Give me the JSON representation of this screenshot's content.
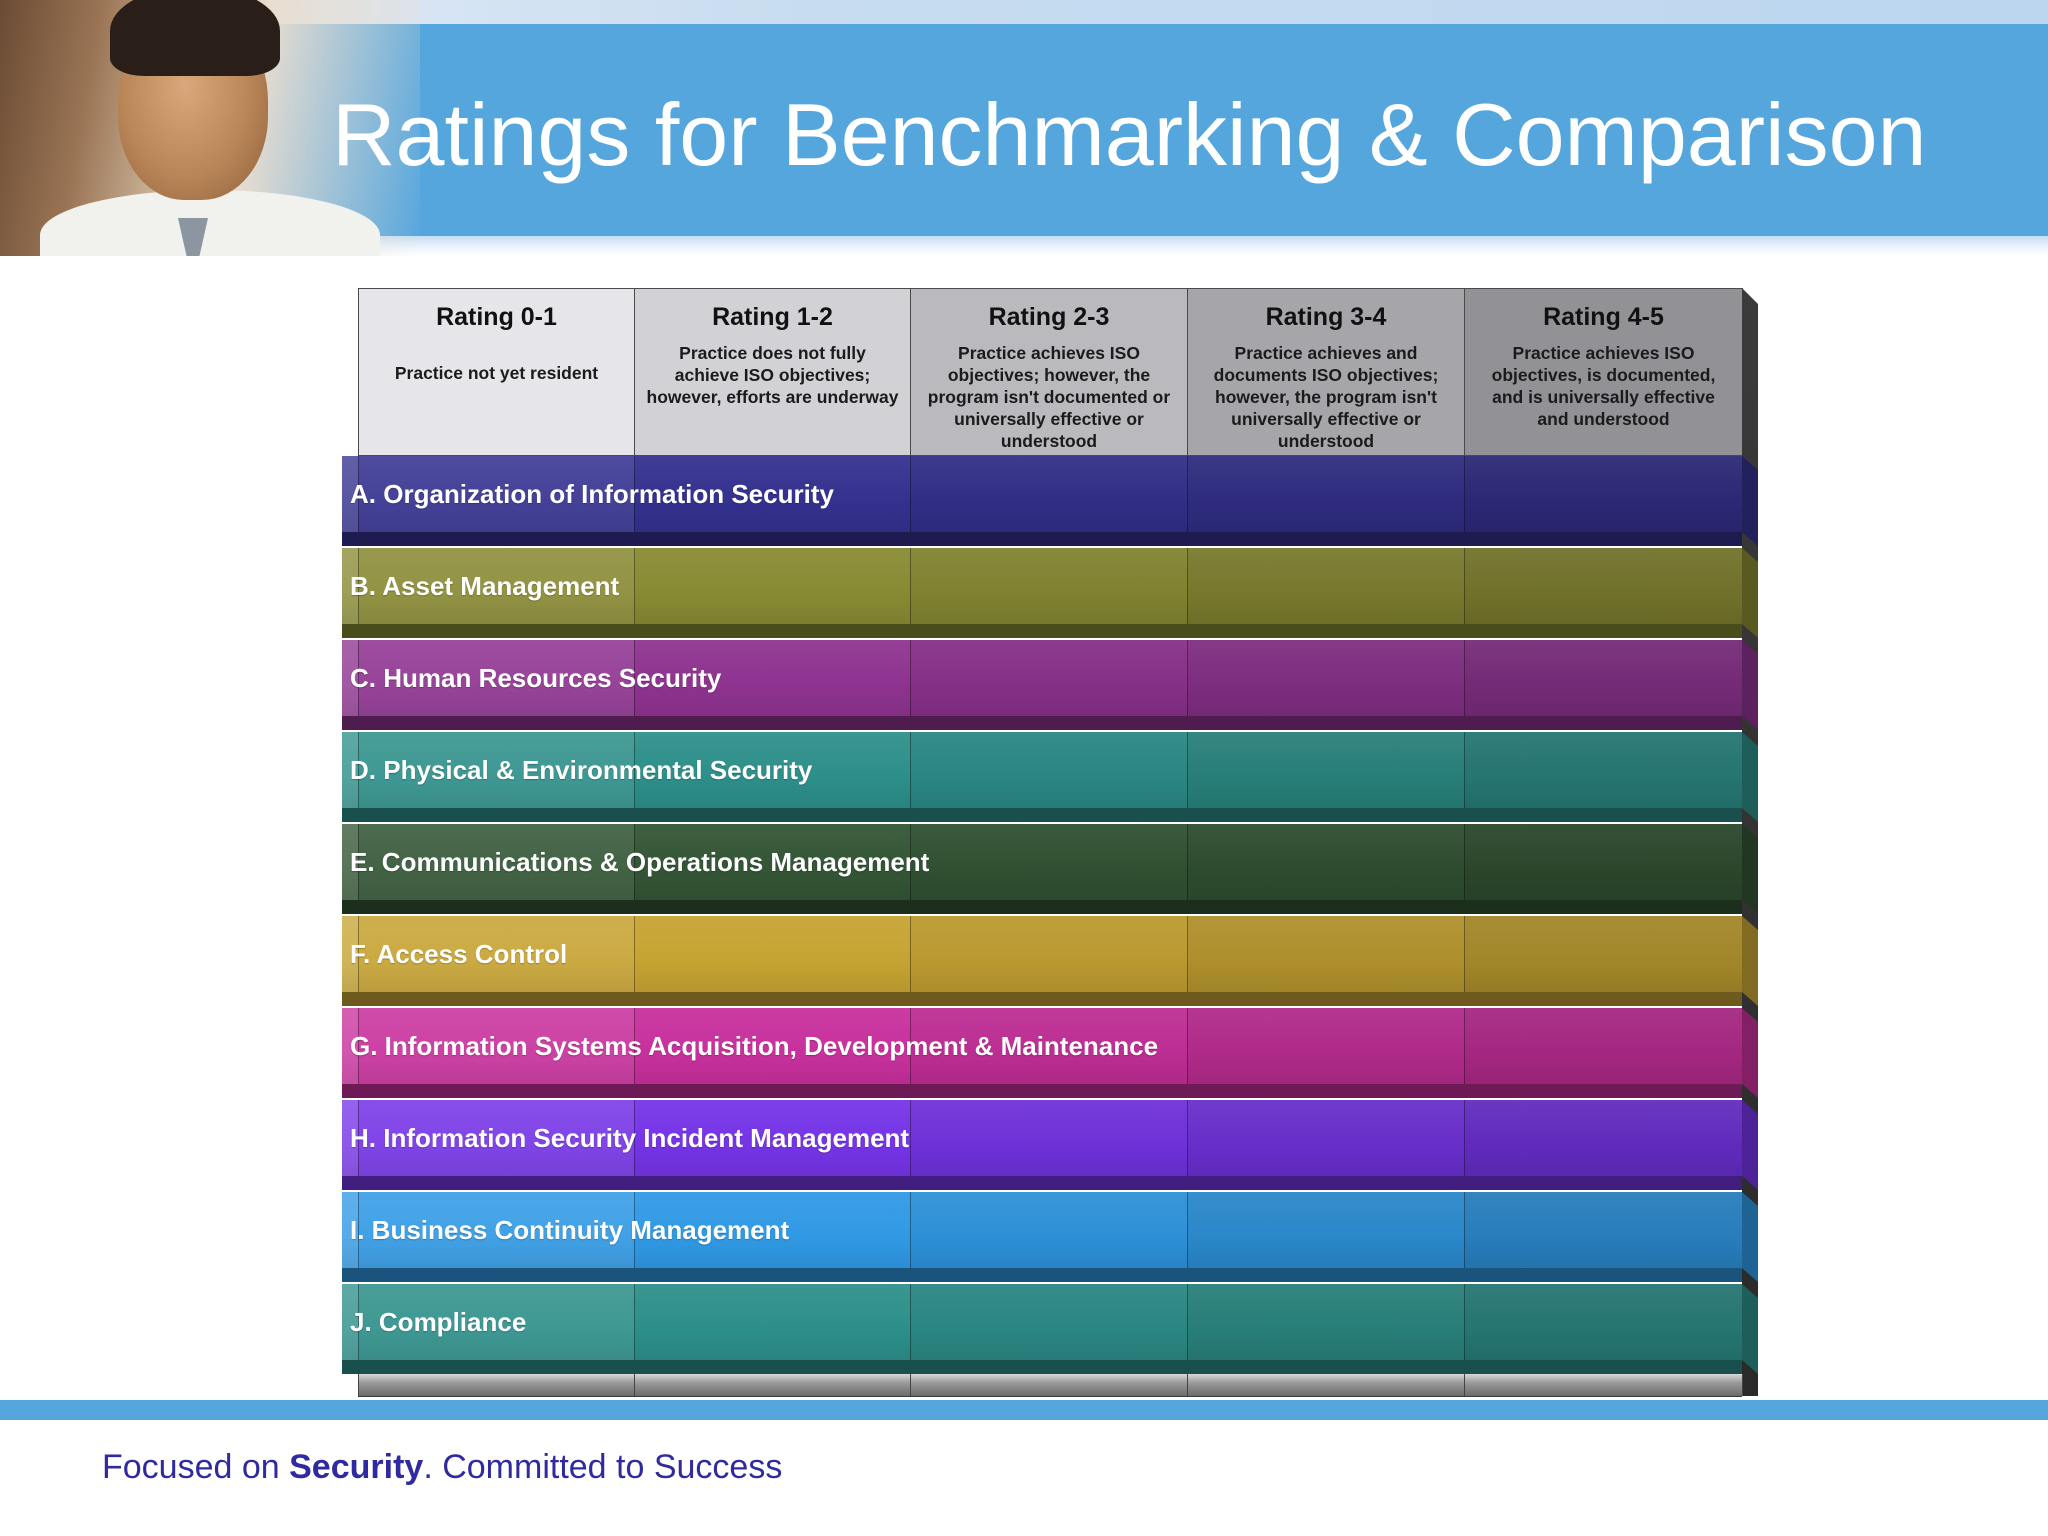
{
  "slide": {
    "title": "Ratings for Benchmarking & Comparison"
  },
  "header_columns": [
    {
      "rating": "Rating 0-1",
      "description": "Practice not yet resident",
      "bg": "#e6e5ea"
    },
    {
      "rating": "Rating 1-2",
      "description": "Practice does not fully achieve ISO objectives; however, efforts are underway",
      "bg": "#d2d1d6"
    },
    {
      "rating": "Rating 2-3",
      "description": "Practice achieves ISO objectives; however, the program isn't documented or universally effective or understood",
      "bg": "#bab9be"
    },
    {
      "rating": "Rating 3-4",
      "description": "Practice achieves and documents ISO objectives; however, the program isn't universally effective or understood",
      "bg": "#a6a5aa"
    },
    {
      "rating": "Rating 4-5",
      "description": "Practice achieves ISO objectives, is documented, and is universally effective and understood",
      "bg": "#929196"
    }
  ],
  "rows": [
    {
      "label": "A. Organization of Information Security",
      "color": "#34318f"
    },
    {
      "label": "B. Asset Management",
      "color": "#888a33"
    },
    {
      "label": "C. Human Resources Security",
      "color": "#8e3390"
    },
    {
      "label": "D. Physical & Environmental Security",
      "color": "#2d8f8a"
    },
    {
      "label": "E. Communications & Operations Management",
      "color": "#335535"
    },
    {
      "label": "F. Access Control",
      "color": "#c6a332"
    },
    {
      "label": "G. Information Systems Acquisition, Development & Maintenance",
      "color": "#c8309c"
    },
    {
      "label": "H. Information Security Incident Management",
      "color": "#7534e6"
    },
    {
      "label": "I. Business Continuity Management",
      "color": "#3099e4"
    },
    {
      "label": "J. Compliance",
      "color": "#2d8f8a"
    }
  ],
  "footer": {
    "tagline_prefix": "Focused on ",
    "tagline_bold": "Security",
    "tagline_suffix": ". Committed to Success"
  }
}
